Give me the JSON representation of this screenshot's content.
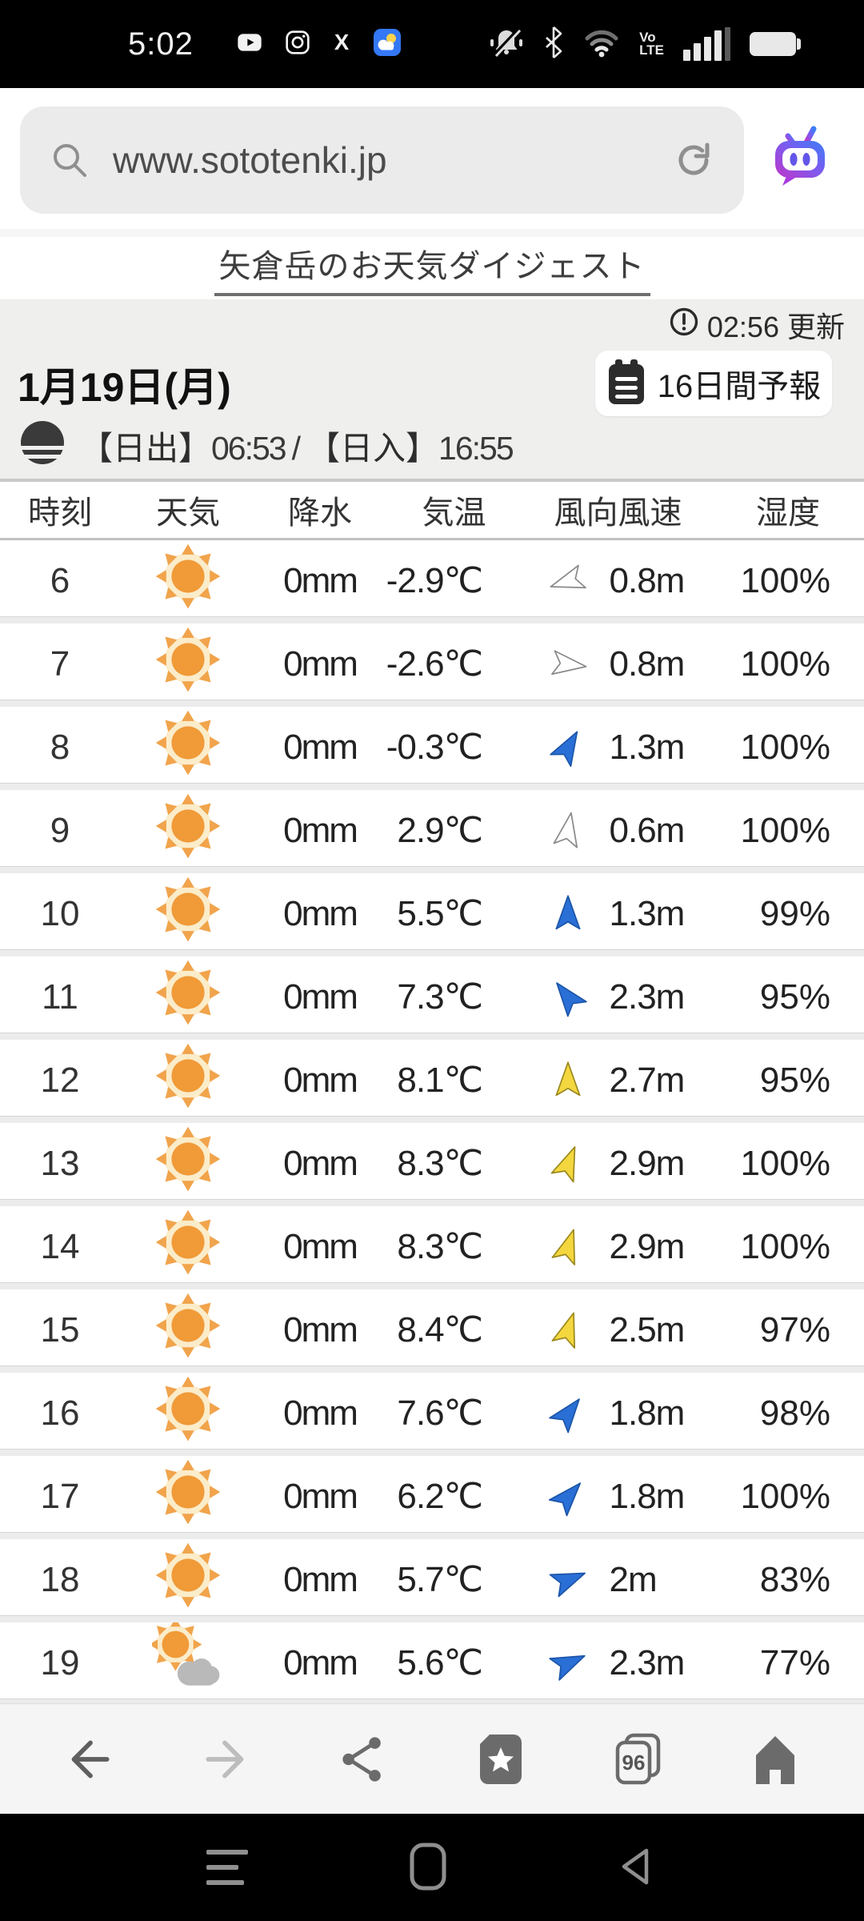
{
  "status_bar": {
    "time": "5:02",
    "notification_icons": [
      "youtube",
      "instagram",
      "x",
      "weather-app"
    ],
    "volte_line1": "Vo",
    "volte_line2": "LTE",
    "system_icons": [
      "vibrate-muted-bell",
      "bluetooth",
      "wifi",
      "volte",
      "signal-bars",
      "battery"
    ]
  },
  "browser": {
    "url": "www.sototenki.jp",
    "search_icon": "magnifier",
    "reload_icon": "reload-arrow",
    "assistant_icon": "tv-mascot"
  },
  "page": {
    "title_link": "矢倉岳のお天気ダイジェスト",
    "updated_time": "02:56",
    "updated_suffix": "更新",
    "date": "1月19日(月)",
    "forecast_button_label": "16日間予報",
    "sunrise_label": "【日出】",
    "sunrise_time": "06:53",
    "sun_separator": "/",
    "sunset_label": "【日入】",
    "sunset_time": "16:55",
    "table": {
      "headers": [
        "時刻",
        "天気",
        "降水",
        "気温",
        "風向風速",
        "湿度"
      ],
      "rows": [
        {
          "hour": "6",
          "weather": "sunny",
          "precip": "0mm",
          "temp": "-2.9℃",
          "wind": {
            "color": "outline",
            "dir_deg": 252,
            "speed": "0.8m"
          },
          "humidity": "100%"
        },
        {
          "hour": "7",
          "weather": "sunny",
          "precip": "0mm",
          "temp": "-2.6℃",
          "wind": {
            "color": "outline",
            "dir_deg": 97,
            "speed": "0.8m"
          },
          "humidity": "100%"
        },
        {
          "hour": "8",
          "weather": "sunny",
          "precip": "0mm",
          "temp": "-0.3℃",
          "wind": {
            "color": "blue",
            "dir_deg": 30,
            "speed": "1.3m"
          },
          "humidity": "100%"
        },
        {
          "hour": "9",
          "weather": "sunny",
          "precip": "0mm",
          "temp": "2.9℃",
          "wind": {
            "color": "outline",
            "dir_deg": 10,
            "speed": "0.6m"
          },
          "humidity": "100%"
        },
        {
          "hour": "10",
          "weather": "sunny",
          "precip": "0mm",
          "temp": "5.5℃",
          "wind": {
            "color": "blue",
            "dir_deg": 0,
            "speed": "1.3m"
          },
          "humidity": "99%"
        },
        {
          "hour": "11",
          "weather": "sunny",
          "precip": "0mm",
          "temp": "7.3℃",
          "wind": {
            "color": "blue",
            "dir_deg": -38,
            "speed": "2.3m"
          },
          "humidity": "95%"
        },
        {
          "hour": "12",
          "weather": "sunny",
          "precip": "0mm",
          "temp": "8.1℃",
          "wind": {
            "color": "yellow",
            "dir_deg": 0,
            "speed": "2.7m"
          },
          "humidity": "95%"
        },
        {
          "hour": "13",
          "weather": "sunny",
          "precip": "0mm",
          "temp": "8.3℃",
          "wind": {
            "color": "yellow",
            "dir_deg": 22,
            "speed": "2.9m"
          },
          "humidity": "100%"
        },
        {
          "hour": "14",
          "weather": "sunny",
          "precip": "0mm",
          "temp": "8.3℃",
          "wind": {
            "color": "yellow",
            "dir_deg": 18,
            "speed": "2.9m"
          },
          "humidity": "100%"
        },
        {
          "hour": "15",
          "weather": "sunny",
          "precip": "0mm",
          "temp": "8.4℃",
          "wind": {
            "color": "yellow",
            "dir_deg": 18,
            "speed": "2.5m"
          },
          "humidity": "97%"
        },
        {
          "hour": "16",
          "weather": "sunny",
          "precip": "0mm",
          "temp": "7.6℃",
          "wind": {
            "color": "blue",
            "dir_deg": 38,
            "speed": "1.8m"
          },
          "humidity": "98%"
        },
        {
          "hour": "17",
          "weather": "sunny",
          "precip": "0mm",
          "temp": "6.2℃",
          "wind": {
            "color": "blue",
            "dir_deg": 42,
            "speed": "1.8m"
          },
          "humidity": "100%"
        },
        {
          "hour": "18",
          "weather": "sunny",
          "precip": "0mm",
          "temp": "5.7℃",
          "wind": {
            "color": "blue",
            "dir_deg": 68,
            "speed": "2m"
          },
          "humidity": "83%"
        },
        {
          "hour": "19",
          "weather": "partly-cloudy",
          "precip": "0mm",
          "temp": "5.6℃",
          "wind": {
            "color": "blue",
            "dir_deg": 66,
            "speed": "2.3m"
          },
          "humidity": "77%"
        }
      ]
    }
  },
  "toolbar": {
    "icons": [
      "back",
      "forward",
      "share",
      "bookmarks",
      "tabs",
      "home"
    ],
    "tab_count": "96"
  },
  "nav_bar": {
    "icons": [
      "menu",
      "home",
      "back"
    ]
  },
  "colors": {
    "sun_orange": "#f09a38",
    "cloud_gray": "#b9b9b9",
    "arrow_blue_fill": "#2a6fd6",
    "arrow_blue_stroke": "#1c55a8",
    "arrow_yellow_fill": "#f4d73f",
    "arrow_yellow_stroke": "#9c8a1f",
    "arrow_outline_fill": "#ffffff",
    "arrow_outline_stroke": "#8a8a8a",
    "assistant_blue": "#3d7ef7",
    "assistant_magenta": "#c036c9"
  }
}
